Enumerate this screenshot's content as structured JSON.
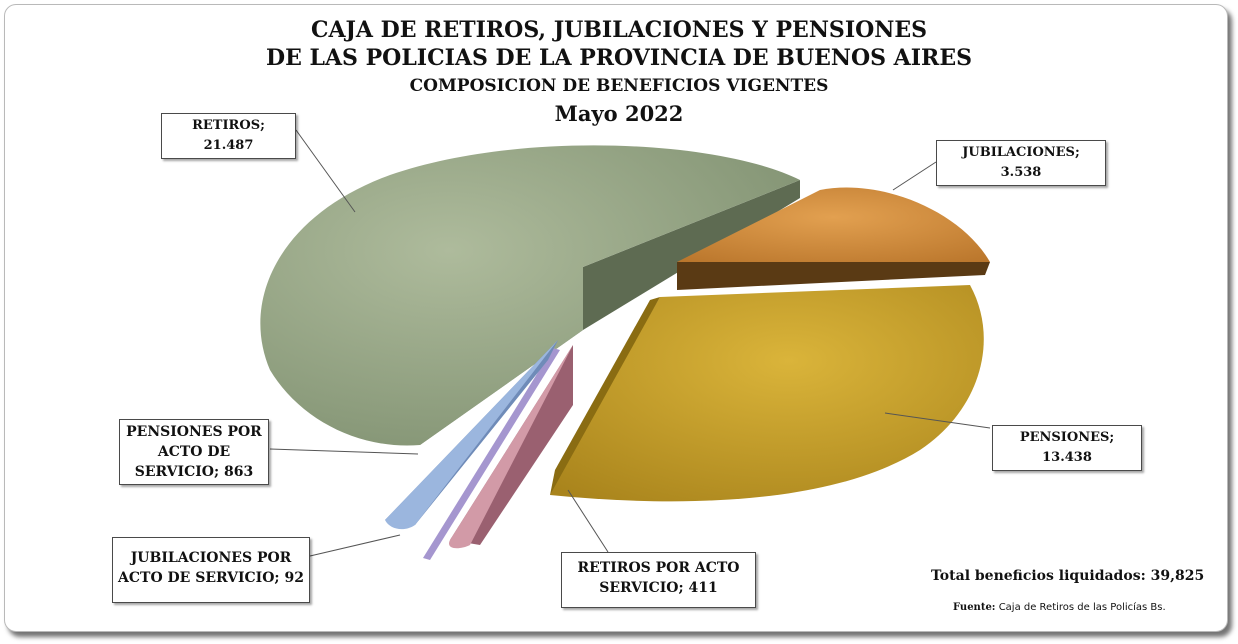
{
  "titles": {
    "line1": "CAJA DE RETIROS, JUBILACIONES Y PENSIONES",
    "line2": "DE LAS POLICIAS DE LA PROVINCIA DE BUENOS AIRES",
    "line3": "COMPOSICION  DE BENEFICIOS VIGENTES",
    "line4": "Mayo 2022"
  },
  "labels": {
    "retiros": "RETIROS; 21.487",
    "jubilaciones": "JUBILACIONES; 3.538",
    "pensiones": "PENSIONES; 13.438",
    "retiros_acto": "RETIROS POR ACTO SERVICIO; 411",
    "jubilaciones_acto": "JUBILACIONES POR ACTO DE SERVICIO;  92",
    "pensiones_acto": "PENSIONES POR ACTO DE SERVICIO;  863"
  },
  "footer": {
    "total": "Total beneficios liquidados: 39,825",
    "source_label": "Fuente:",
    "source_text": "Caja de Retiros de las Policías Bs."
  },
  "chart_data": {
    "type": "pie",
    "style": "3d-exploded",
    "title": "CAJA DE RETIROS, JUBILACIONES Y PENSIONES DE LAS POLICIAS DE LA PROVINCIA DE BUENOS AIRES - COMPOSICION DE BENEFICIOS VIGENTES - Mayo 2022",
    "slices": [
      {
        "name": "RETIROS",
        "value": 21487,
        "color": "#8fa07c"
      },
      {
        "name": "JUBILACIONES",
        "value": 3538,
        "color": "#d08a38"
      },
      {
        "name": "PENSIONES",
        "value": 13438,
        "color": "#c9a22a"
      },
      {
        "name": "RETIROS POR ACTO SERVICIO",
        "value": 411,
        "color": "#c48694"
      },
      {
        "name": "JUBILACIONES POR ACTO DE SERVICIO",
        "value": 92,
        "color": "#a596cf"
      },
      {
        "name": "PENSIONES POR ACTO DE SERVICIO",
        "value": 863,
        "color": "#88a6d2"
      }
    ],
    "total": 39825
  }
}
